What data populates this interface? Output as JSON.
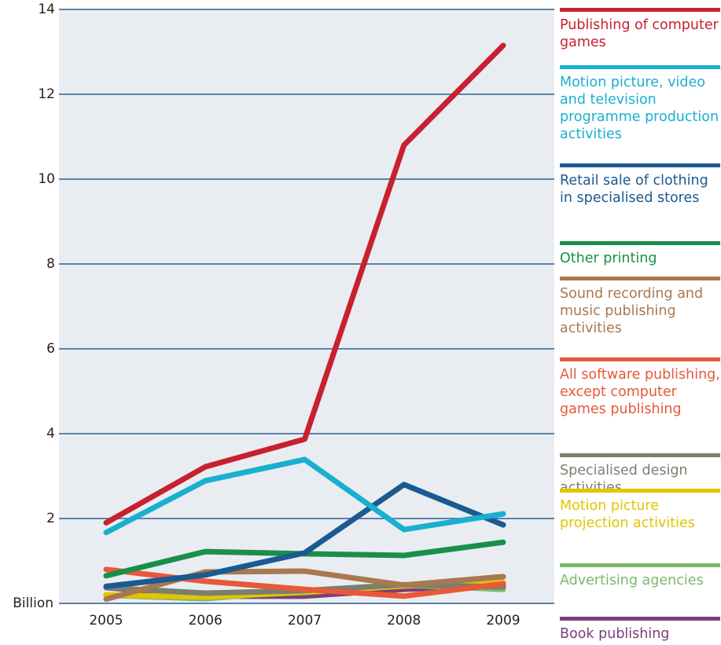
{
  "chart_data": {
    "type": "line",
    "categories": [
      "2005",
      "2006",
      "2007",
      "2008",
      "2009"
    ],
    "ylim": [
      0,
      14
    ],
    "yticks": [
      {
        "value": 0,
        "label": "Billion"
      },
      2,
      4,
      6,
      8,
      10,
      12,
      14
    ],
    "grid": true,
    "legend": "right",
    "series": [
      {
        "name": "Publishing of computer games",
        "color": "#c8202f",
        "values": [
          1.9,
          3.22,
          3.87,
          10.8,
          13.15
        ]
      },
      {
        "name": "Motion picture, video and television programme production activities",
        "color": "#1aafd0",
        "values": [
          1.67,
          2.89,
          3.39,
          1.74,
          2.11
        ]
      },
      {
        "name": "Retail sale of clothing in specialised stores",
        "color": "#1a5a90",
        "values": [
          0.4,
          0.67,
          1.19,
          2.8,
          1.85
        ]
      },
      {
        "name": "Other printing",
        "color": "#1a8f4a",
        "values": [
          0.65,
          1.22,
          1.17,
          1.13,
          1.44
        ]
      },
      {
        "name": "Sound recording and music publishing activities",
        "color": "#a87850",
        "values": [
          0.1,
          0.74,
          0.76,
          0.43,
          0.63
        ]
      },
      {
        "name": "All software publishing, except computer games publishing",
        "color": "#e8583a",
        "values": [
          0.8,
          0.52,
          0.33,
          0.17,
          0.46
        ]
      },
      {
        "name": "Specialised design activities",
        "color": "#7a7f70",
        "values": [
          0.37,
          0.24,
          0.3,
          0.44,
          0.39
        ]
      },
      {
        "name": "Motion picture projection activities",
        "color": "#e3c400",
        "values": [
          0.2,
          0.15,
          0.26,
          0.41,
          0.5
        ]
      },
      {
        "name": "Advertising agencies",
        "color": "#7ab86a",
        "values": [
          0.19,
          0.11,
          0.3,
          0.43,
          0.33
        ]
      },
      {
        "name": "Book publishing",
        "color": "#7a3f78",
        "values": [
          0.37,
          0.17,
          0.17,
          0.33,
          0.43
        ]
      }
    ]
  }
}
